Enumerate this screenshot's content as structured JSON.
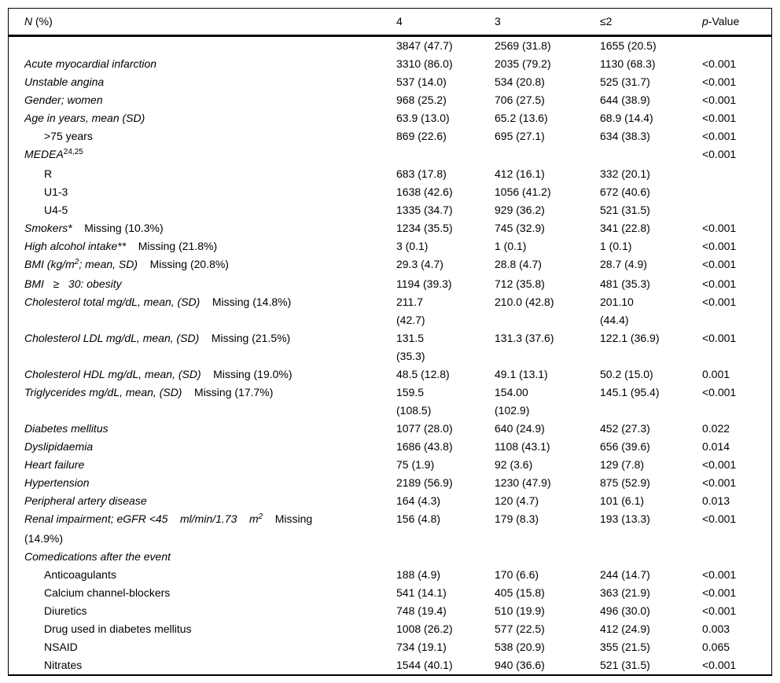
{
  "colors": {
    "background": "#ffffff",
    "text": "#000000",
    "border": "#000000"
  },
  "header": {
    "col0": [
      {
        "t": "N",
        "s": "i"
      },
      {
        "t": " (%)",
        "s": "n"
      }
    ],
    "col1": "4",
    "col2": "3",
    "col3": "≤2",
    "col4": [
      {
        "t": "p",
        "s": "i"
      },
      {
        "t": "-Value",
        "s": "n"
      }
    ]
  },
  "rows": [
    {
      "indent": false,
      "label": [],
      "c1": "3847 (47.7)",
      "c2": "2569 (31.8)",
      "c3": "1655 (20.5)",
      "p": ""
    },
    {
      "indent": false,
      "label": [
        {
          "t": "Acute myocardial infarction",
          "s": "i"
        }
      ],
      "c1": "3310 (86.0)",
      "c2": "2035 (79.2)",
      "c3": "1130 (68.3)",
      "p": "<0.001"
    },
    {
      "indent": false,
      "label": [
        {
          "t": "Unstable angina",
          "s": "i"
        }
      ],
      "c1": "537 (14.0)",
      "c2": "534 (20.8)",
      "c3": "525 (31.7)",
      "p": "<0.001"
    },
    {
      "indent": false,
      "label": [
        {
          "t": "Gender; women",
          "s": "i"
        }
      ],
      "c1": "968 (25.2)",
      "c2": "706 (27.5)",
      "c3": "644 (38.9)",
      "p": "<0.001"
    },
    {
      "indent": false,
      "label": [
        {
          "t": "Age in years, mean (SD)",
          "s": "i"
        }
      ],
      "c1": "63.9 (13.0)",
      "c2": "65.2 (13.6)",
      "c3": "68.9 (14.4)",
      "p": "<0.001"
    },
    {
      "indent": true,
      "label": [
        {
          "t": ">75 years",
          "s": "n"
        }
      ],
      "c1": "869 (22.6)",
      "c2": "695 (27.1)",
      "c3": "634 (38.3)",
      "p": "<0.001"
    },
    {
      "indent": false,
      "label": [
        {
          "t": "MEDEA",
          "s": "i"
        },
        {
          "t": "24,25",
          "s": "sup"
        }
      ],
      "c1": "",
      "c2": "",
      "c3": "",
      "p": "<0.001"
    },
    {
      "indent": true,
      "label": [
        {
          "t": "R",
          "s": "n"
        }
      ],
      "c1": "683 (17.8)",
      "c2": "412 (16.1)",
      "c3": "332 (20.1)",
      "p": ""
    },
    {
      "indent": true,
      "label": [
        {
          "t": "U1-3",
          "s": "n"
        }
      ],
      "c1": "1638 (42.6)",
      "c2": "1056 (41.2)",
      "c3": "672 (40.6)",
      "p": ""
    },
    {
      "indent": true,
      "label": [
        {
          "t": "U4-5",
          "s": "n"
        }
      ],
      "c1": "1335 (34.7)",
      "c2": "929 (36.2)",
      "c3": "521 (31.5)",
      "p": ""
    },
    {
      "indent": false,
      "label": [
        {
          "t": "Smokers*",
          "s": "i"
        },
        {
          "t": "    Missing (10.3%)",
          "s": "n"
        }
      ],
      "c1": "1234 (35.5)",
      "c2": "745 (32.9)",
      "c3": "341 (22.8)",
      "p": "<0.001"
    },
    {
      "indent": false,
      "label": [
        {
          "t": "High alcohol intake**",
          "s": "i"
        },
        {
          "t": "    Missing (21.8%)",
          "s": "n"
        }
      ],
      "c1": "3 (0.1)",
      "c2": "1 (0.1)",
      "c3": "1 (0.1)",
      "p": "<0.001"
    },
    {
      "indent": false,
      "label": [
        {
          "t": "BMI (kg/m",
          "s": "i"
        },
        {
          "t": "2",
          "s": "isup"
        },
        {
          "t": "; mean, SD)",
          "s": "i"
        },
        {
          "t": "    Missing (20.8%)",
          "s": "n"
        }
      ],
      "c1": "29.3 (4.7)",
      "c2": "28.8 (4.7)",
      "c3": "28.7 (4.9)",
      "p": "<0.001"
    },
    {
      "indent": false,
      "label": [
        {
          "t": "BMI   ≥   30: obesity",
          "s": "i"
        }
      ],
      "c1": "1194 (39.3)",
      "c2": "712 (35.8)",
      "c3": "481 (35.3)",
      "p": "<0.001"
    },
    {
      "indent": false,
      "label": [
        {
          "t": "Cholesterol total mg/dL, mean, (SD)",
          "s": "i"
        },
        {
          "t": "    Missing (14.8%)",
          "s": "n"
        }
      ],
      "c1": "211.7\n(42.7)",
      "c2": "210.0 (42.8)",
      "c3": "201.10\n(44.4)",
      "p": "<0.001"
    },
    {
      "indent": false,
      "label": [
        {
          "t": "Cholesterol LDL mg/dL, mean, (SD)",
          "s": "i"
        },
        {
          "t": "    Missing (21.5%)",
          "s": "n"
        }
      ],
      "c1": "131.5\n(35.3)",
      "c2": "131.3 (37.6)",
      "c3": "122.1 (36.9)",
      "p": "<0.001"
    },
    {
      "indent": false,
      "label": [
        {
          "t": "Cholesterol HDL mg/dL, mean, (SD)",
          "s": "i"
        },
        {
          "t": "    Missing (19.0%)",
          "s": "n"
        }
      ],
      "c1": "48.5 (12.8)",
      "c2": "49.1 (13.1)",
      "c3": "50.2 (15.0)",
      "p": "0.001"
    },
    {
      "indent": false,
      "label": [
        {
          "t": "Triglycerides mg/dL, mean, (SD)",
          "s": "i"
        },
        {
          "t": "    Missing (17.7%)",
          "s": "n"
        }
      ],
      "c1": "159.5\n(108.5)",
      "c2": "154.00\n(102.9)",
      "c3": "145.1 (95.4)",
      "p": "<0.001"
    },
    {
      "indent": false,
      "label": [
        {
          "t": "Diabetes mellitus",
          "s": "i"
        }
      ],
      "c1": "1077 (28.0)",
      "c2": "640 (24.9)",
      "c3": "452 (27.3)",
      "p": "0.022"
    },
    {
      "indent": false,
      "label": [
        {
          "t": "Dyslipidaemia",
          "s": "i"
        }
      ],
      "c1": "1686 (43.8)",
      "c2": "1108 (43.1)",
      "c3": "656 (39.6)",
      "p": "0.014"
    },
    {
      "indent": false,
      "label": [
        {
          "t": "Heart failure",
          "s": "i"
        }
      ],
      "c1": "75 (1.9)",
      "c2": "92 (3.6)",
      "c3": "129 (7.8)",
      "p": "<0.001"
    },
    {
      "indent": false,
      "label": [
        {
          "t": "Hypertension",
          "s": "i"
        }
      ],
      "c1": "2189 (56.9)",
      "c2": "1230 (47.9)",
      "c3": "875 (52.9)",
      "p": "<0.001"
    },
    {
      "indent": false,
      "label": [
        {
          "t": "Peripheral artery disease",
          "s": "i"
        }
      ],
      "c1": "164 (4.3)",
      "c2": "120 (4.7)",
      "c3": "101 (6.1)",
      "p": "0.013"
    },
    {
      "indent": false,
      "label": [
        {
          "t": "Renal impairment; eGFR <45    ml/min/1.73    m",
          "s": "i"
        },
        {
          "t": "2",
          "s": "isup"
        },
        {
          "t": "    Missing",
          "s": "n"
        },
        {
          "t": "\n(14.9%)",
          "s": "n"
        }
      ],
      "c1": "156 (4.8)",
      "c2": "179 (8.3)",
      "c3": "193 (13.3)",
      "p": "<0.001"
    },
    {
      "indent": false,
      "label": [
        {
          "t": "Comedications after the event",
          "s": "i"
        }
      ],
      "c1": "",
      "c2": "",
      "c3": "",
      "p": ""
    },
    {
      "indent": true,
      "label": [
        {
          "t": "Anticoagulants",
          "s": "n"
        }
      ],
      "c1": "188 (4.9)",
      "c2": "170 (6.6)",
      "c3": "244 (14.7)",
      "p": "<0.001"
    },
    {
      "indent": true,
      "label": [
        {
          "t": "Calcium channel-blockers",
          "s": "n"
        }
      ],
      "c1": "541 (14.1)",
      "c2": "405 (15.8)",
      "c3": "363 (21.9)",
      "p": "<0.001"
    },
    {
      "indent": true,
      "label": [
        {
          "t": "Diuretics",
          "s": "n"
        }
      ],
      "c1": "748 (19.4)",
      "c2": "510 (19.9)",
      "c3": "496 (30.0)",
      "p": "<0.001"
    },
    {
      "indent": true,
      "label": [
        {
          "t": "Drug used in diabetes mellitus",
          "s": "n"
        }
      ],
      "c1": "1008 (26.2)",
      "c2": "577 (22.5)",
      "c3": "412 (24.9)",
      "p": "0.003"
    },
    {
      "indent": true,
      "label": [
        {
          "t": "NSAID",
          "s": "n"
        }
      ],
      "c1": "734 (19.1)",
      "c2": "538 (20.9)",
      "c3": "355 (21.5)",
      "p": "0.065"
    },
    {
      "indent": true,
      "label": [
        {
          "t": "Nitrates",
          "s": "n"
        }
      ],
      "c1": "1544 (40.1)",
      "c2": "940 (36.6)",
      "c3": "521 (31.5)",
      "p": "<0.001"
    }
  ]
}
